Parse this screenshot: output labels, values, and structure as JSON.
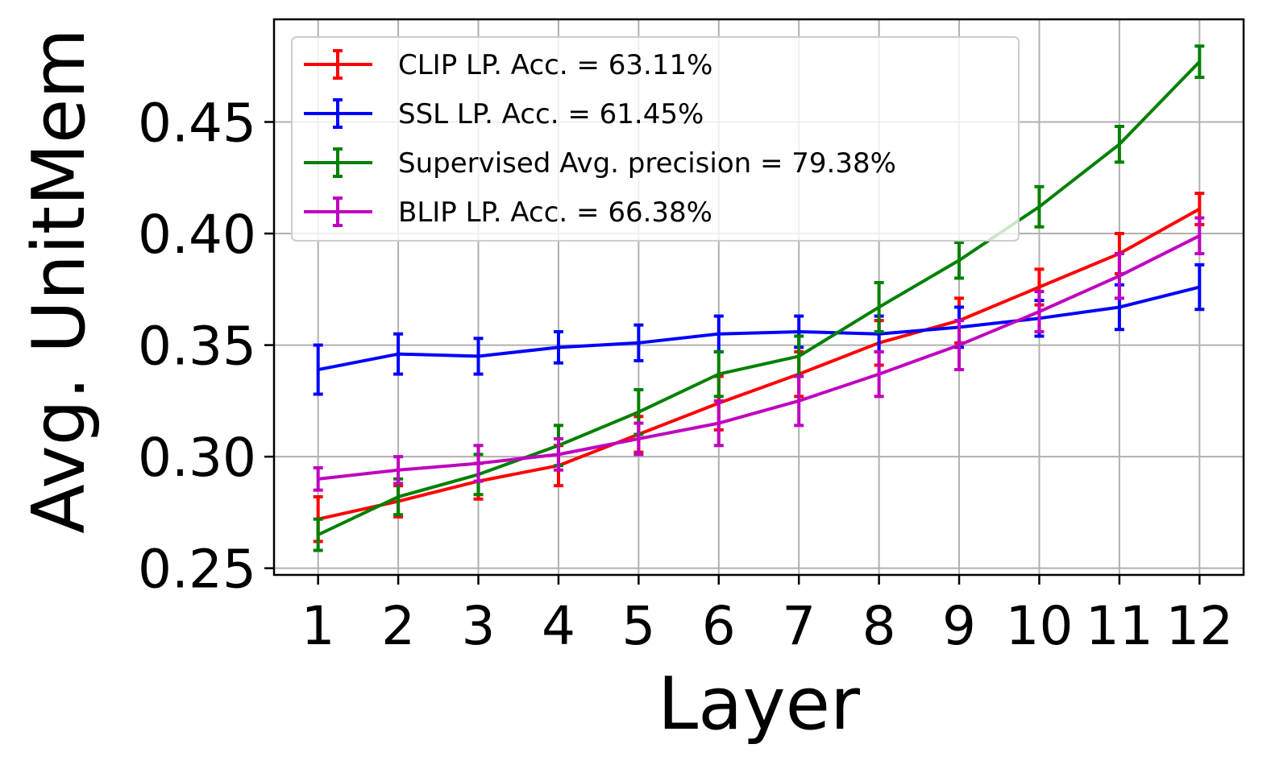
{
  "chart_data": {
    "type": "line",
    "xlabel": "Layer",
    "ylabel": "Avg. UnitMem",
    "x": [
      1,
      2,
      3,
      4,
      5,
      6,
      7,
      8,
      9,
      10,
      11,
      12
    ],
    "x_tick_labels": [
      "1",
      "2",
      "3",
      "4",
      "5",
      "6",
      "7",
      "8",
      "9",
      "10",
      "11",
      "12"
    ],
    "y_ticks": [
      0.25,
      0.3,
      0.35,
      0.4,
      0.45
    ],
    "y_tick_labels": [
      "0.25",
      "0.30",
      "0.35",
      "0.40",
      "0.45"
    ],
    "xlim": [
      0.45,
      12.55
    ],
    "ylim": [
      0.247,
      0.496
    ],
    "grid": true,
    "legend_position": "top-left",
    "series": [
      {
        "name": "CLIP LP. Acc. = 63.11%",
        "color": "#ff0000",
        "values": [
          0.272,
          0.28,
          0.289,
          0.296,
          0.31,
          0.324,
          0.337,
          0.351,
          0.361,
          0.376,
          0.391,
          0.411
        ],
        "errors": [
          0.01,
          0.007,
          0.008,
          0.009,
          0.008,
          0.012,
          0.01,
          0.01,
          0.01,
          0.008,
          0.009,
          0.007
        ]
      },
      {
        "name": "SSL LP. Acc. = 61.45%",
        "color": "#0000ff",
        "values": [
          0.339,
          0.346,
          0.345,
          0.349,
          0.351,
          0.355,
          0.356,
          0.355,
          0.358,
          0.362,
          0.367,
          0.376
        ],
        "errors": [
          0.011,
          0.009,
          0.008,
          0.007,
          0.008,
          0.008,
          0.007,
          0.008,
          0.009,
          0.008,
          0.01,
          0.01
        ]
      },
      {
        "name": "Supervised Avg. precision = 79.38%",
        "color": "#008000",
        "values": [
          0.265,
          0.282,
          0.292,
          0.305,
          0.32,
          0.337,
          0.345,
          0.367,
          0.388,
          0.412,
          0.44,
          0.477
        ],
        "errors": [
          0.007,
          0.008,
          0.009,
          0.009,
          0.01,
          0.01,
          0.009,
          0.011,
          0.008,
          0.009,
          0.008,
          0.007
        ]
      },
      {
        "name": "BLIP LP. Acc. = 66.38%",
        "color": "#bf00bf",
        "values": [
          0.29,
          0.294,
          0.297,
          0.301,
          0.308,
          0.315,
          0.325,
          0.337,
          0.35,
          0.365,
          0.381,
          0.399
        ],
        "errors": [
          0.005,
          0.006,
          0.008,
          0.007,
          0.007,
          0.01,
          0.011,
          0.01,
          0.011,
          0.009,
          0.01,
          0.008
        ]
      }
    ]
  }
}
